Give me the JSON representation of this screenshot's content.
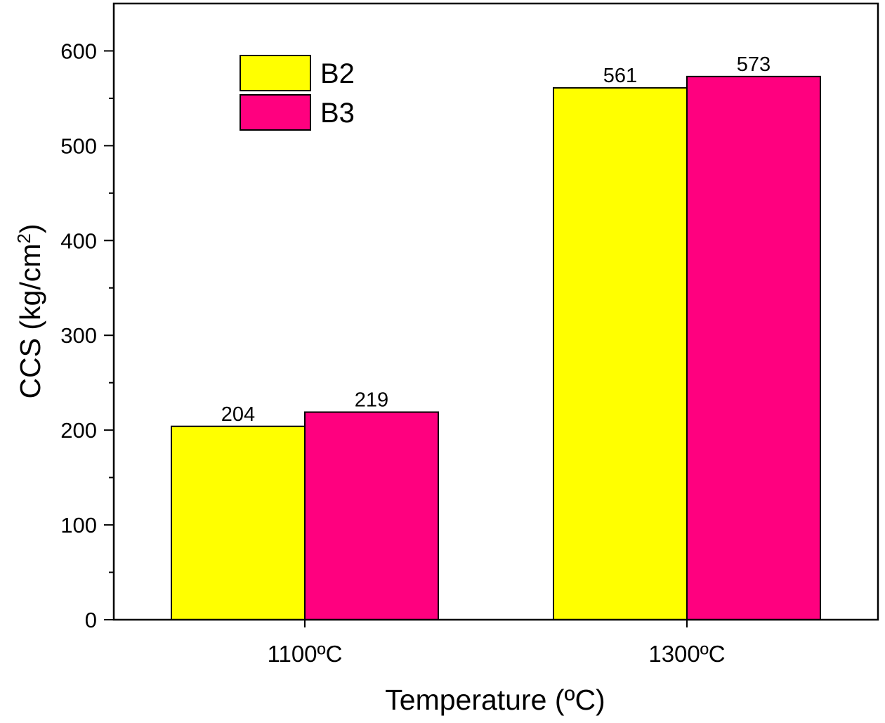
{
  "chart_data": {
    "type": "bar",
    "categories": [
      "1100ºC",
      "1300ºC"
    ],
    "series": [
      {
        "name": "B2",
        "values": [
          204,
          561
        ],
        "color": "#ffff00"
      },
      {
        "name": "B3",
        "values": [
          219,
          573
        ],
        "color": "#ff007f"
      }
    ],
    "data_labels": [
      [
        "204",
        "561"
      ],
      [
        "219",
        "573"
      ]
    ],
    "xlabel": "Temperature (ºC)",
    "ylabel": {
      "main": "CCS (kg/cm",
      "sup": "2",
      "end": ")"
    },
    "ylim": [
      0,
      650
    ],
    "yticks": [
      0,
      100,
      200,
      300,
      400,
      500,
      600
    ],
    "legend_position": "top-left",
    "grid": false
  }
}
